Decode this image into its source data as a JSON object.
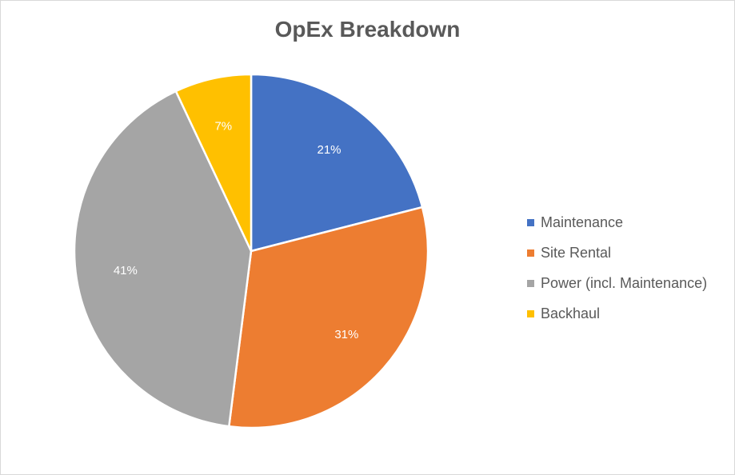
{
  "chart_data": {
    "type": "pie",
    "title": "OpEx Breakdown",
    "categories": [
      "Maintenance",
      "Site Rental",
      "Power (incl. Maintenance)",
      "Backhaul"
    ],
    "values": [
      21,
      31,
      41,
      7
    ],
    "labels": [
      "21%",
      "31%",
      "41%",
      "7%"
    ],
    "colors": [
      "#4472C4",
      "#ED7D31",
      "#A5A5A5",
      "#FFC000"
    ],
    "legend_position": "right"
  }
}
